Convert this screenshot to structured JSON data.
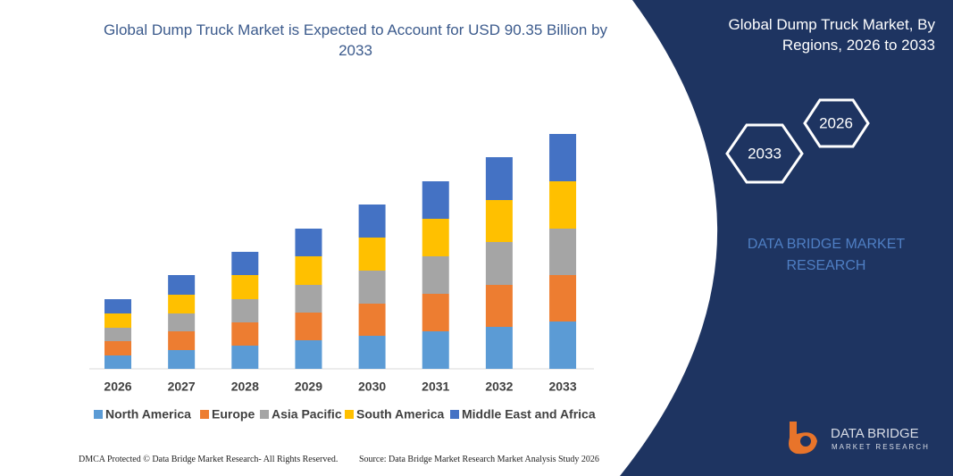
{
  "chart_data": {
    "type": "stacked-bar",
    "title": "Global Dump Truck Market is Expected to Account for USD 90.35 Billion by 2033",
    "categories": [
      "2026",
      "2027",
      "2028",
      "2029",
      "2030",
      "2031",
      "2032",
      "2033"
    ],
    "series": [
      {
        "name": "North America",
        "color": "#5b9bd5",
        "values": [
          15,
          21,
          26,
          32,
          37,
          42,
          47,
          53
        ]
      },
      {
        "name": "Europe",
        "color": "#ed7d31",
        "values": [
          16,
          21,
          26,
          31,
          36,
          42,
          47,
          52
        ]
      },
      {
        "name": "Asia Pacific",
        "color": "#a5a5a5",
        "values": [
          15,
          20,
          26,
          31,
          37,
          42,
          48,
          52
        ]
      },
      {
        "name": "South America",
        "color": "#ffc000",
        "values": [
          16,
          21,
          27,
          32,
          37,
          42,
          47,
          53
        ]
      },
      {
        "name": "Middle East and Africa",
        "color": "#4472c4",
        "values": [
          16,
          22,
          26,
          31,
          37,
          42,
          48,
          53
        ]
      }
    ],
    "legend": "bottom"
  },
  "panel": {
    "title": "Global Dump Truck Market, By Regions, 2026 to 2033",
    "hexagons": [
      "2033",
      "2026"
    ],
    "brand": "DATA BRIDGE MARKET RESEARCH"
  },
  "logo": {
    "name": "DATA BRIDGE",
    "tagline": "MARKET RESEARCH"
  },
  "footer": {
    "left": "DMCA Protected © Data Bridge Market Research- All Rights Reserved.",
    "right": "Source: Data Bridge Market Research Market Analysis Study 2026"
  }
}
